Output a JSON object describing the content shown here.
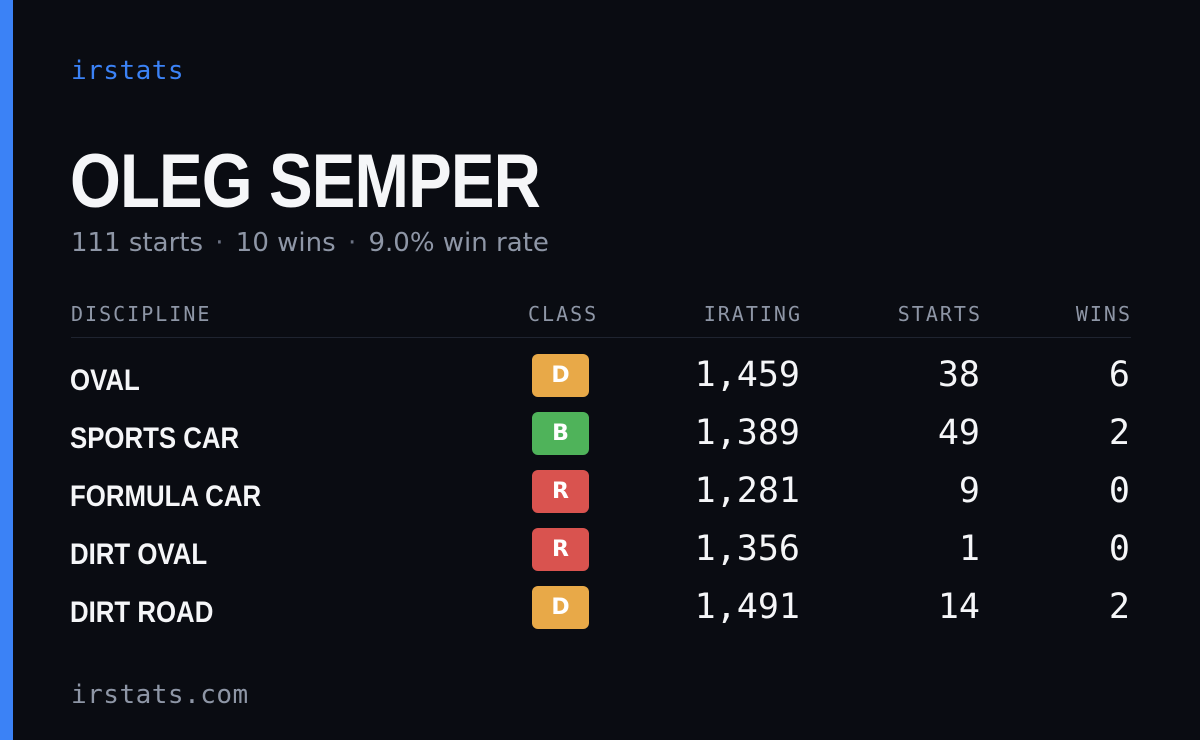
{
  "brand": "irstats",
  "driver": {
    "name": "OLEG SEMPER",
    "summary": {
      "starts": "111 starts",
      "wins": "10 wins",
      "win_rate": "9.0% win rate",
      "separator": "·"
    }
  },
  "table": {
    "headers": {
      "discipline": "DISCIPLINE",
      "class": "CLASS",
      "irating": "IRATING",
      "starts": "STARTS",
      "wins": "WINS"
    },
    "rows": [
      {
        "discipline": "OVAL",
        "class": "D",
        "class_color": "#e8a948",
        "irating": "1,459",
        "starts": "38",
        "wins": "6"
      },
      {
        "discipline": "SPORTS CAR",
        "class": "B",
        "class_color": "#4fb35a",
        "irating": "1,389",
        "starts": "49",
        "wins": "2"
      },
      {
        "discipline": "FORMULA CAR",
        "class": "R",
        "class_color": "#d9534f",
        "irating": "1,281",
        "starts": "9",
        "wins": "0"
      },
      {
        "discipline": "DIRT OVAL",
        "class": "R",
        "class_color": "#d9534f",
        "irating": "1,356",
        "starts": "1",
        "wins": "0"
      },
      {
        "discipline": "DIRT ROAD",
        "class": "D",
        "class_color": "#e8a948",
        "irating": "1,491",
        "starts": "14",
        "wins": "2"
      }
    ]
  },
  "footer": "irstats.com",
  "colors": {
    "accent": "#3b82f6",
    "background": "#0a0c12",
    "muted_text": "#8e96a6"
  }
}
